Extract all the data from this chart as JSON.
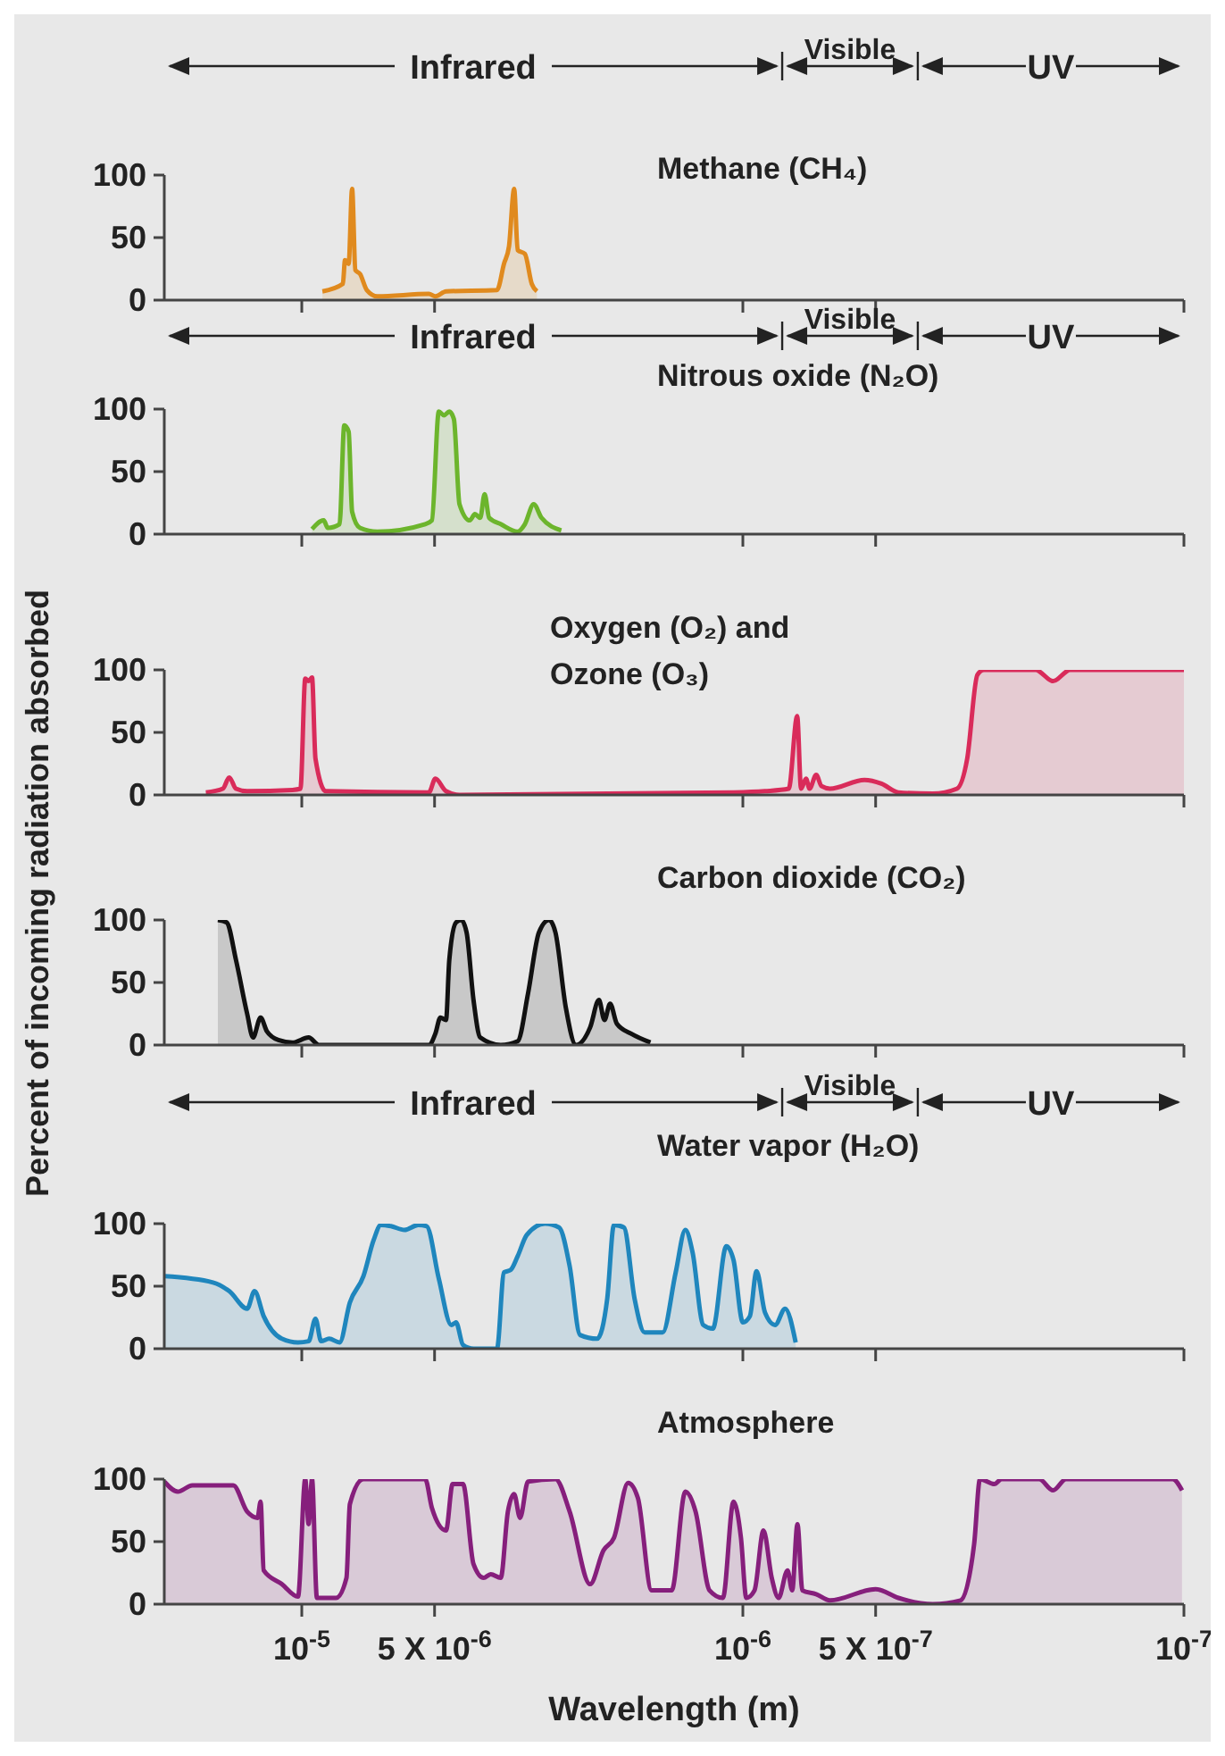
{
  "chart_data": [
    {
      "type": "area",
      "log": "x",
      "title": "Methane (CH₄)",
      "annotations": [
        "Infrared",
        "Visible",
        "UV"
      ],
      "xlim": [
        2.05e-05,
        1e-07
      ],
      "ylim": [
        0,
        100
      ],
      "yticks": [
        0,
        50,
        100
      ],
      "xticks": [
        {
          "value": 1e-05,
          "label": null
        },
        {
          "value": 5e-06,
          "label": null
        },
        {
          "value": 1e-06,
          "label": null
        },
        {
          "value": 5e-07,
          "label": null
        },
        {
          "value": 1e-07,
          "label": null
        }
      ],
      "tick_labels": "y",
      "series": [
        {
          "color": "#e08a1e",
          "x": [
            8.98e-06,
            8.07e-06,
            7.98e-06,
            7.83e-06,
            7.69e-06,
            7.56e-06,
            7.38e-06,
            7.12e-06,
            6.74e-06,
            5.15e-06,
            4.98e-06,
            4.71e-06,
            3.61e-06,
            3.48e-06,
            3.39e-06,
            3.3e-06,
            3.24e-06,
            3.12e-06,
            3.01e-06,
            2.93e-06
          ],
          "values": [
            7,
            13,
            32,
            29,
            89,
            24,
            21,
            8,
            3,
            5,
            3,
            7,
            8,
            29,
            43,
            89,
            40,
            37,
            13,
            7
          ]
        }
      ]
    },
    {
      "type": "area",
      "log": "x",
      "title": "Nitrous oxide (N₂O)",
      "annotations": [
        "Infrared",
        "Visible",
        "UV"
      ],
      "xlim": [
        2.05e-05,
        1e-07
      ],
      "ylim": [
        0,
        100
      ],
      "yticks": [
        0,
        50,
        100
      ],
      "xticks": [
        {
          "value": 1e-05,
          "label": null
        },
        {
          "value": 5e-06,
          "label": null
        },
        {
          "value": 1e-06,
          "label": null
        },
        {
          "value": 5e-07,
          "label": null
        },
        {
          "value": 1e-07,
          "label": null
        }
      ],
      "tick_labels": "y",
      "series": [
        {
          "color": "#6cb52c",
          "x": [
            9.48e-06,
            8.92e-06,
            8.73e-06,
            8.21e-06,
            8.01e-06,
            7.83e-06,
            7.69e-06,
            7.38e-06,
            6.74e-06,
            5.25e-06,
            5.07e-06,
            4.89e-06,
            4.76e-06,
            4.63e-06,
            4.52e-06,
            4.39e-06,
            4.16e-06,
            4.05e-06,
            3.94e-06,
            3.85e-06,
            3.76e-06,
            3.54e-06,
            3.24e-06,
            3.12e-06,
            2.98e-06,
            2.86e-06,
            2.58e-06
          ],
          "values": [
            4,
            11,
            5,
            8,
            87,
            82,
            18,
            5,
            2,
            8,
            11,
            98,
            95,
            98,
            92,
            24,
            11,
            16,
            13,
            32,
            13,
            8,
            2,
            8,
            24,
            13,
            3
          ]
        }
      ]
    },
    {
      "type": "area",
      "log": "x",
      "title": "Oxygen (O₂)  and Ozone (O₃)",
      "ylabel": "Percent of incoming radiation absorbed",
      "xlim": [
        2.05e-05,
        1e-07
      ],
      "ylim": [
        0,
        100
      ],
      "yticks": [
        0,
        50,
        100
      ],
      "xticks": [
        {
          "value": 1e-05,
          "label": null
        },
        {
          "value": 5e-06,
          "label": null
        },
        {
          "value": 1e-06,
          "label": null
        },
        {
          "value": 5e-07,
          "label": null
        },
        {
          "value": 1e-07,
          "label": null
        }
      ],
      "tick_labels": "y",
      "series": [
        {
          "color": "#d92b5a",
          "x": [
            1.65e-05,
            1.51e-05,
            1.46e-05,
            1.41e-05,
            1.33e-05,
            1.05e-05,
            1.007e-05,
            9.82e-06,
            9.65e-06,
            9.48e-06,
            9.31e-06,
            8.82e-06,
            5.15e-06,
            4.98e-06,
            4.71e-06,
            4.39e-06,
            1.05e-06,
            8.91e-07,
            7.87e-07,
            7.53e-07,
            7.38e-07,
            7.19e-07,
            7.06e-07,
            6.82e-07,
            6.63e-07,
            6.35e-07,
            5.3e-07,
            4.85e-07,
            4.44e-07,
            3.71e-07,
            3.27e-07,
            3.1e-07,
            2.94e-07,
            2.84e-07,
            2.17e-07,
            1.98e-07,
            1.81e-07,
            1e-07
          ],
          "values": [
            2,
            5,
            14,
            5,
            3,
            4,
            5,
            93,
            91,
            94,
            29,
            3,
            2,
            13,
            3,
            0,
            2,
            3,
            5,
            63,
            5,
            13,
            5,
            16,
            7,
            5,
            12,
            9,
            2,
            1,
            5,
            29,
            96,
            100,
            100,
            91,
            100,
            100
          ]
        }
      ]
    },
    {
      "type": "area",
      "log": "x",
      "title": "Carbon dioxide (CO₂)",
      "xlim": [
        2.05e-05,
        1e-07
      ],
      "ylim": [
        0,
        100
      ],
      "yticks": [
        0,
        50,
        100
      ],
      "xticks": [
        {
          "value": 1e-05,
          "label": null
        },
        {
          "value": 5e-06,
          "label": null
        },
        {
          "value": 1e-06,
          "label": null
        },
        {
          "value": 5e-07,
          "label": null
        },
        {
          "value": 1e-07,
          "label": null
        }
      ],
      "tick_labels": "y",
      "series": [
        {
          "color": "#111111",
          "x": [
            1.55e-05,
            1.48e-05,
            1.41e-05,
            1.33e-05,
            1.29e-05,
            1.24e-05,
            1.2e-05,
            1.13e-05,
            1.05e-05,
            9.65e-06,
            9.14e-06,
            5.15e-06,
            4.98e-06,
            4.85e-06,
            4.71e-06,
            4.63e-06,
            4.47e-06,
            4.35e-06,
            4.23e-06,
            4.08e-06,
            3.94e-06,
            3.54e-06,
            3.24e-06,
            3.07e-06,
            2.9e-06,
            2.75e-06,
            2.66e-06,
            2.52e-06,
            2.39e-06,
            2.22e-06,
            2.12e-06,
            2.06e-06,
            2e-06,
            1.93e-06,
            1.79e-06,
            1.62e-06
          ],
          "values": [
            100,
            98,
            68,
            25,
            6,
            22,
            11,
            4,
            2,
            6,
            0,
            0,
            9,
            22,
            20,
            68,
            98,
            100,
            90,
            36,
            6,
            0,
            3,
            41,
            90,
            100,
            90,
            30,
            0,
            14,
            36,
            20,
            33,
            17,
            9,
            2
          ]
        }
      ]
    },
    {
      "type": "area",
      "log": "x",
      "title": "Water vapor (H₂O)",
      "annotations": [
        "Infrared",
        "Visible",
        "UV"
      ],
      "xlim": [
        2.05e-05,
        1e-07
      ],
      "ylim": [
        0,
        100
      ],
      "yticks": [
        0,
        50,
        100
      ],
      "xticks": [
        {
          "value": 1e-05,
          "label": null
        },
        {
          "value": 5e-06,
          "label": null
        },
        {
          "value": 1e-06,
          "label": null
        },
        {
          "value": 5e-07,
          "label": null
        },
        {
          "value": 1e-07,
          "label": null
        }
      ],
      "tick_labels": "y",
      "series": [
        {
          "color": "#1f86bd",
          "x": [
            2.05e-05,
            1.59e-05,
            1.46e-05,
            1.33e-05,
            1.28e-05,
            1.22e-05,
            1.11e-05,
            1.02e-05,
            9.65e-06,
            9.31e-06,
            9.04e-06,
            8.67e-06,
            8.21e-06,
            7.78e-06,
            7.25e-06,
            6.87e-06,
            6.62e-06,
            6.28e-06,
            5.85e-06,
            5.44e-06,
            5.21e-06,
            4.89e-06,
            4.58e-06,
            4.47e-06,
            4.31e-06,
            4.08e-06,
            3.61e-06,
            3.48e-06,
            3.36e-06,
            3.24e-06,
            3.09e-06,
            2.81e-06,
            2.61e-06,
            2.47e-06,
            2.34e-06,
            2.14e-06,
            2.03e-06,
            1.96e-06,
            1.86e-06,
            1.76e-06,
            1.67e-06,
            1.52e-06,
            1.42e-06,
            1.35e-06,
            1.3e-06,
            1.23e-06,
            1.17e-06,
            1.09e-06,
            1.05e-06,
            1e-06,
            9.64e-07,
            9.31e-07,
            8.91e-07,
            8.45e-07,
            8.02e-07,
            7.59e-07
          ],
          "values": [
            58,
            53,
            46,
            32,
            46,
            26,
            8,
            5,
            6,
            24,
            6,
            8,
            5,
            37,
            58,
            87,
            99,
            98,
            95,
            99,
            98,
            56,
            19,
            21,
            3,
            0,
            0,
            61,
            63,
            74,
            91,
            100,
            97,
            66,
            11,
            8,
            40,
            99,
            97,
            40,
            13,
            13,
            61,
            95,
            77,
            19,
            16,
            82,
            71,
            21,
            26,
            62,
            29,
            19,
            32,
            5
          ]
        }
      ]
    },
    {
      "type": "area",
      "log": "x",
      "title": "Atmosphere",
      "xlabel": "Wavelength (m)",
      "xlim": [
        2.05e-05,
        1e-07
      ],
      "ylim": [
        0,
        100
      ],
      "yticks": [
        0,
        50,
        100
      ],
      "xticks": [
        {
          "value": 1e-05,
          "label": "10$^{-5}$"
        },
        {
          "value": 5e-06,
          "label": "5 X 10$^{-6}$"
        },
        {
          "value": 1e-06,
          "label": "10$^{-6}$"
        },
        {
          "value": 5e-07,
          "label": "5 X 10$^{-7}$"
        },
        {
          "value": 1e-07,
          "label": "10$^{-7}$"
        }
      ],
      "series": [
        {
          "color": "#861f7c",
          "x": [
            2.05e-05,
            1.91e-05,
            1.77e-05,
            1.43e-05,
            1.33e-05,
            1.26e-05,
            1.24e-05,
            1.22e-05,
            1.11e-05,
            1.02e-05,
            9.82e-06,
            9.65e-06,
            9.48e-06,
            9.24e-06,
            8.36e-06,
            7.92e-06,
            7.78e-06,
            7.25e-06,
            5.25e-06,
            5.07e-06,
            4.71e-06,
            4.55e-06,
            4.31e-06,
            4.08e-06,
            3.87e-06,
            3.73e-06,
            3.54e-06,
            3.41e-06,
            3.3e-06,
            3.2e-06,
            3.07e-06,
            2.66e-06,
            2.47e-06,
            2.22e-06,
            2.07e-06,
            1.96e-06,
            1.82e-06,
            1.73e-06,
            1.61e-06,
            1.45e-06,
            1.35e-06,
            1.28e-06,
            1.19e-06,
            1.11e-06,
            1.05e-06,
            1.01e-06,
            9.82e-07,
            9.41e-07,
            8.98e-07,
            8.6e-07,
            8.3e-07,
            7.92e-07,
            7.73e-07,
            7.52e-07,
            7.33e-07,
            6.82e-07,
            6.35e-07,
            5e-07,
            4.44e-07,
            3.71e-07,
            3.21e-07,
            2.99e-07,
            2.9e-07,
            2.69e-07,
            2.59e-07,
            2.13e-07,
            1.98e-07,
            1.85e-07,
            1.06e-07,
            1.01e-07
          ],
          "values": [
            98,
            90,
            95,
            95,
            74,
            69,
            82,
            27,
            16,
            6,
            100,
            64,
            100,
            5,
            5,
            21,
            80,
            100,
            100,
            77,
            59,
            96,
            96,
            32,
            21,
            24,
            21,
            74,
            88,
            69,
            98,
            100,
            74,
            16,
            43,
            53,
            97,
            85,
            11,
            11,
            90,
            74,
            11,
            5,
            82,
            53,
            5,
            11,
            59,
            21,
            5,
            27,
            11,
            64,
            11,
            8,
            3,
            12,
            5,
            0,
            3,
            48,
            100,
            96,
            100,
            100,
            91,
            100,
            100,
            91
          ]
        }
      ]
    }
  ]
}
